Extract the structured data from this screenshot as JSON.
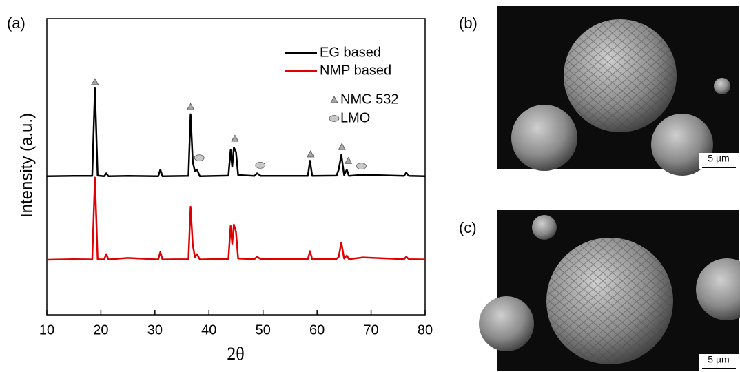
{
  "chart_data": {
    "type": "line",
    "panel_label": "(a)",
    "xlabel": "2θ",
    "ylabel": "Intensity (a.u.)",
    "x": [
      10,
      15,
      18.4,
      18.9,
      19.4,
      20.6,
      21.0,
      21.4,
      25,
      30.6,
      31,
      31.4,
      36.2,
      36.6,
      37.0,
      37.4,
      37.8,
      38.3,
      43.6,
      44.0,
      44.3,
      44.6,
      45.0,
      45.4,
      48.4,
      48.9,
      49.6,
      58.3,
      58.7,
      59.1,
      63.6,
      64.0,
      64.5,
      65.0,
      65.5,
      65.9,
      68.5,
      76.1,
      76.5,
      77,
      80
    ],
    "series": [
      {
        "name": "EG based",
        "color": "#000000",
        "values": [
          46.8,
          46.9,
          46.9,
          76.5,
          47.0,
          46.8,
          47.8,
          46.8,
          46.9,
          46.8,
          49.0,
          46.8,
          46.9,
          67.7,
          51.5,
          48.5,
          49.0,
          46.8,
          47.0,
          55.6,
          50.0,
          56.5,
          55.0,
          47.2,
          46.9,
          47.8,
          46.9,
          46.9,
          52.0,
          46.9,
          47.0,
          49.0,
          54.0,
          47.2,
          49.0,
          46.9,
          47.3,
          46.9,
          48.0,
          46.9,
          46.8
        ]
      },
      {
        "name": "NMP based",
        "color": "#e00000",
        "values": [
          18.6,
          18.8,
          18.7,
          46.3,
          18.8,
          18.7,
          20.5,
          18.7,
          19.2,
          18.7,
          21.2,
          18.7,
          18.8,
          36.5,
          23.5,
          19.5,
          20.5,
          18.7,
          18.9,
          30.0,
          24.0,
          30.5,
          28.0,
          19.0,
          18.8,
          19.6,
          18.8,
          18.8,
          21.5,
          18.8,
          18.9,
          19.5,
          24.4,
          19.0,
          20.0,
          18.8,
          19.4,
          18.8,
          19.6,
          18.8,
          18.7
        ]
      }
    ],
    "markers": [
      {
        "name": "NMC 532",
        "shape": "triangle",
        "color": "#a6a6a6",
        "x": [
          18.9,
          36.6,
          44.8,
          58.8,
          64.6,
          65.8
        ],
        "y": [
          78.6,
          70.2,
          59.5,
          54.2,
          56.7,
          52.0
        ]
      },
      {
        "name": "LMO",
        "shape": "ellipse",
        "color": "#c8c8c8",
        "x": [
          38.2,
          49.5,
          68.2
        ],
        "y": [
          53.0,
          50.5,
          50.2
        ]
      }
    ],
    "xlim": [
      10,
      80
    ],
    "xticks": [
      10,
      20,
      30,
      40,
      50,
      60,
      70,
      80
    ],
    "ylim": [
      0,
      100
    ],
    "legend": "upper right",
    "grid": false
  },
  "images": [
    {
      "label": "(b)",
      "scale_bar": "5 µm"
    },
    {
      "label": "(c)",
      "scale_bar": "5 µm"
    }
  ]
}
